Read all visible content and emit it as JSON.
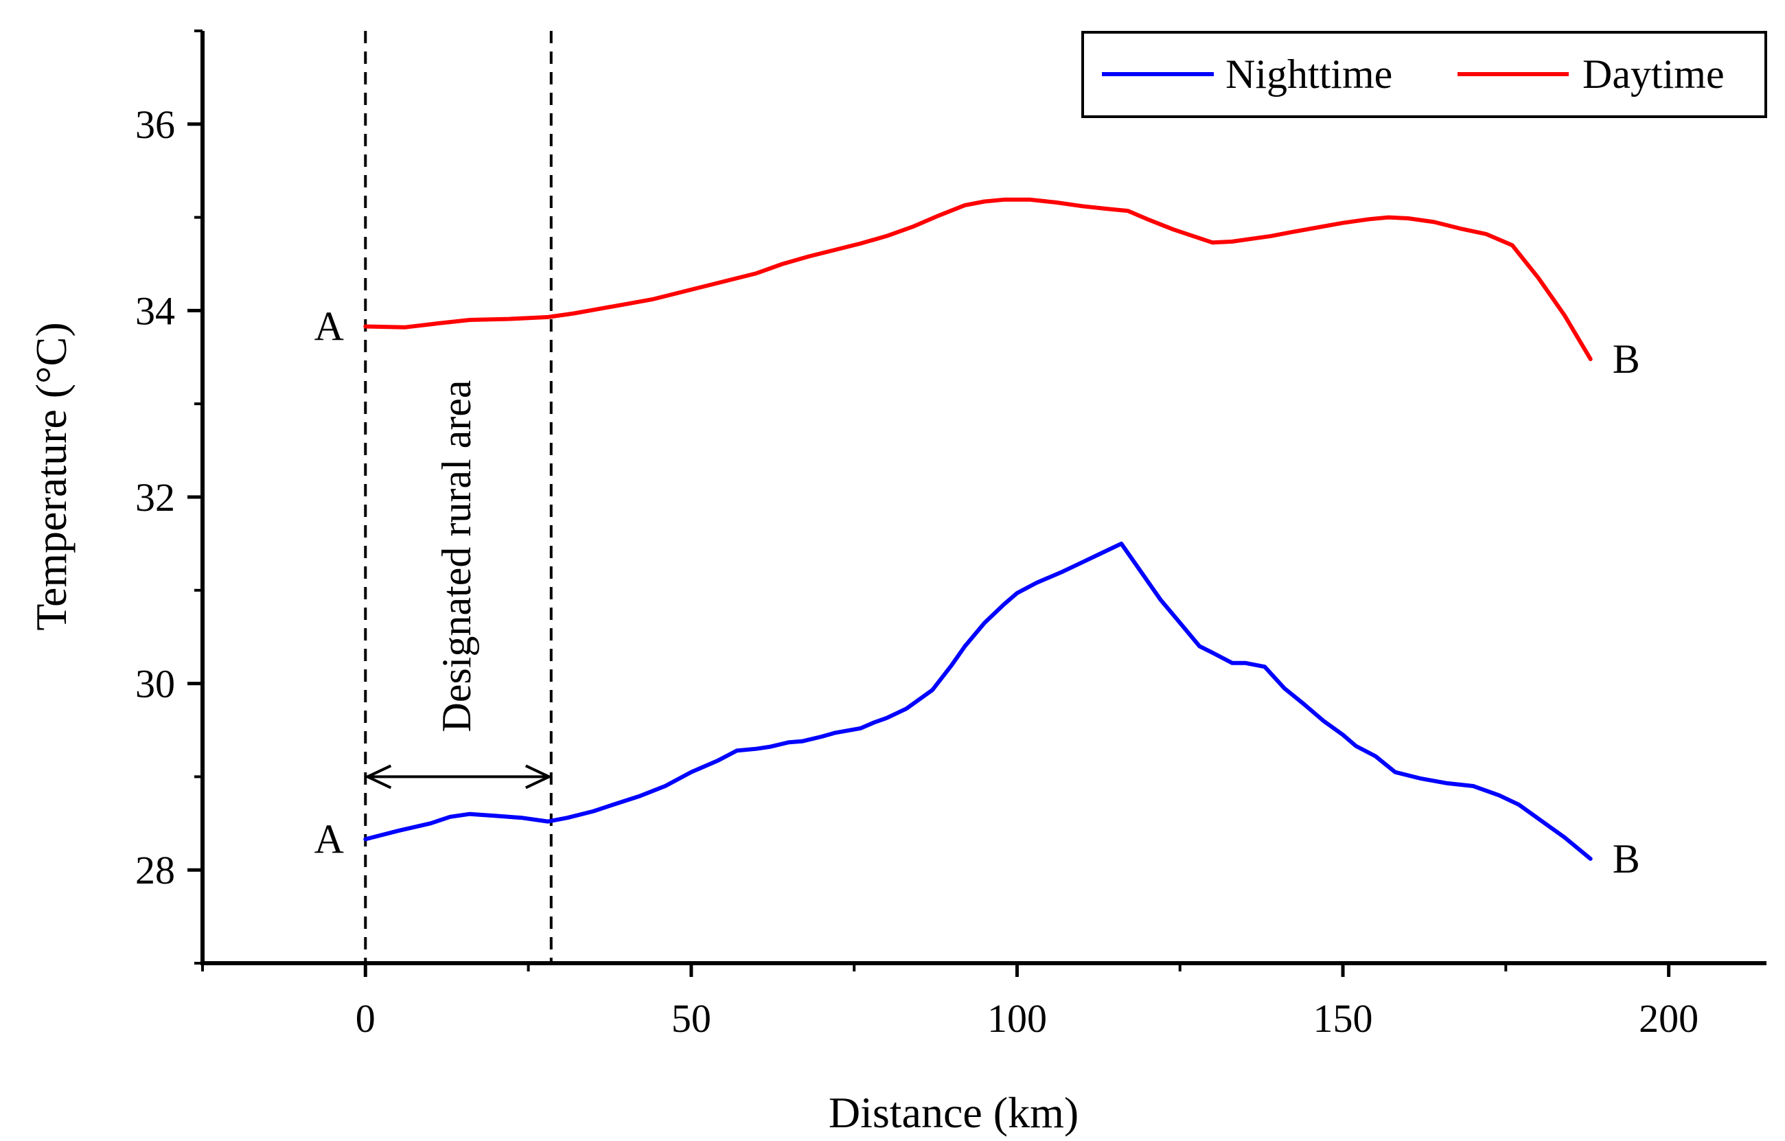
{
  "chart_data": {
    "type": "line",
    "title": "",
    "xlabel": "Distance (km)",
    "ylabel": "Temperature (°C)",
    "xlim": [
      -25,
      215
    ],
    "ylim": [
      27,
      37
    ],
    "xticks": [
      0,
      50,
      100,
      150,
      200
    ],
    "yticks": [
      28,
      30,
      32,
      34,
      36
    ],
    "xtick_labels": [
      "0",
      "50",
      "100",
      "150",
      "200"
    ],
    "ytick_labels": [
      "28",
      "30",
      "32",
      "34",
      "36"
    ],
    "grid": false,
    "legend": {
      "position": "top-right",
      "entries": [
        "Nighttime",
        "Daytime"
      ]
    },
    "series": [
      {
        "name": "Nighttime",
        "color": "#0000ff",
        "x": [
          0,
          5,
          10,
          13,
          16,
          20,
          24,
          28,
          31,
          35,
          38,
          42,
          46,
          50,
          54,
          57,
          60,
          62,
          65,
          67,
          70,
          72,
          76,
          78,
          80,
          83,
          87,
          90,
          92,
          95,
          98,
          100,
          103,
          107,
          110,
          113,
          116,
          119,
          122,
          125,
          128,
          130,
          133,
          135,
          138,
          141,
          144,
          147,
          150,
          152,
          155,
          158,
          162,
          166,
          170,
          174,
          177,
          181,
          184,
          188
        ],
        "y": [
          28.33,
          28.42,
          28.5,
          28.57,
          28.6,
          28.58,
          28.56,
          28.52,
          28.56,
          28.63,
          28.7,
          28.79,
          28.9,
          29.05,
          29.17,
          29.28,
          29.3,
          29.32,
          29.37,
          29.38,
          29.43,
          29.47,
          29.52,
          29.58,
          29.63,
          29.73,
          29.93,
          30.2,
          30.4,
          30.65,
          30.85,
          30.97,
          31.08,
          31.2,
          31.3,
          31.4,
          31.5,
          31.2,
          30.9,
          30.65,
          30.4,
          30.33,
          30.22,
          30.22,
          30.18,
          29.95,
          29.78,
          29.6,
          29.45,
          29.33,
          29.22,
          29.05,
          28.98,
          28.93,
          28.9,
          28.8,
          28.7,
          28.5,
          28.35,
          28.12
        ]
      },
      {
        "name": "Daytime",
        "color": "#ff0000",
        "x": [
          0,
          6,
          12,
          16,
          22,
          28,
          32,
          36,
          40,
          44,
          48,
          52,
          56,
          60,
          64,
          68,
          72,
          76,
          80,
          84,
          88,
          92,
          95,
          98,
          102,
          106,
          110,
          114,
          117,
          120,
          124,
          127,
          130,
          133,
          136,
          139,
          142,
          146,
          150,
          154,
          157,
          160,
          164,
          168,
          172,
          176,
          180,
          184,
          188
        ],
        "y": [
          33.83,
          33.82,
          33.87,
          33.9,
          33.91,
          33.93,
          33.97,
          34.02,
          34.07,
          34.12,
          34.19,
          34.26,
          34.33,
          34.4,
          34.5,
          34.58,
          34.65,
          34.72,
          34.8,
          34.9,
          35.02,
          35.13,
          35.17,
          35.19,
          35.19,
          35.16,
          35.12,
          35.09,
          35.07,
          34.98,
          34.87,
          34.8,
          34.73,
          34.74,
          34.77,
          34.8,
          34.84,
          34.89,
          34.94,
          34.98,
          35.0,
          34.99,
          34.95,
          34.88,
          34.82,
          34.7,
          34.35,
          33.95,
          33.48
        ]
      }
    ],
    "annotations": {
      "point_a_label": "A",
      "point_b_label": "B",
      "rural_area_label": "Designated rural area",
      "rural_area_range": [
        0,
        28.5
      ]
    }
  }
}
